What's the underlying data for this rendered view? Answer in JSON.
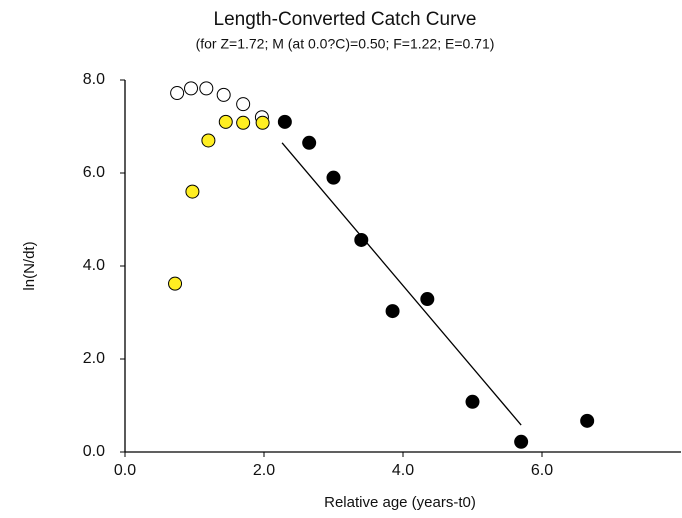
{
  "chart_data": {
    "type": "scatter",
    "title": "Length-Converted Catch Curve",
    "subtitle": "(for Z=1.72; M (at 0.0?C)=0.50; F=1.22; E=0.71)",
    "xlabel": "Relative age (years-t0)",
    "ylabel": "ln(N/dt)",
    "xlim": [
      0,
      8
    ],
    "ylim": [
      0,
      8
    ],
    "xticks": [
      {
        "value": 0,
        "label": "0.0"
      },
      {
        "value": 2,
        "label": "2.0"
      },
      {
        "value": 4,
        "label": "4.0"
      },
      {
        "value": 6,
        "label": "6.0"
      }
    ],
    "yticks": [
      {
        "value": 0,
        "label": "0.0"
      },
      {
        "value": 2,
        "label": "2.0"
      },
      {
        "value": 4,
        "label": "4.0"
      },
      {
        "value": 6,
        "label": "6.0"
      },
      {
        "value": 8,
        "label": "8.0"
      }
    ],
    "series": [
      {
        "color": "#ffffff",
        "edgecolor": "#000000",
        "x": [
          0.75,
          0.95,
          1.17,
          1.42,
          1.7,
          1.97
        ],
        "values": [
          7.72,
          7.82,
          7.82,
          7.68,
          7.48,
          7.2
        ]
      },
      {
        "color": "#ffee22",
        "edgecolor": "#000000",
        "x": [
          0.72,
          0.97,
          1.2,
          1.45,
          1.7,
          1.98
        ],
        "values": [
          3.62,
          5.6,
          6.7,
          7.1,
          7.08,
          7.08
        ]
      },
      {
        "color": "#000000",
        "edgecolor": "#000000",
        "x": [
          2.3,
          2.65,
          3.0,
          3.4,
          3.85,
          4.35,
          5.0,
          5.7,
          6.65
        ],
        "values": [
          7.1,
          6.65,
          5.9,
          4.56,
          3.03,
          3.29,
          1.08,
          0.22,
          0.67
        ]
      }
    ],
    "fit_line": {
      "color": "#000000",
      "x": [
        2.26,
        5.7
      ],
      "y": [
        6.65,
        0.58
      ]
    }
  }
}
